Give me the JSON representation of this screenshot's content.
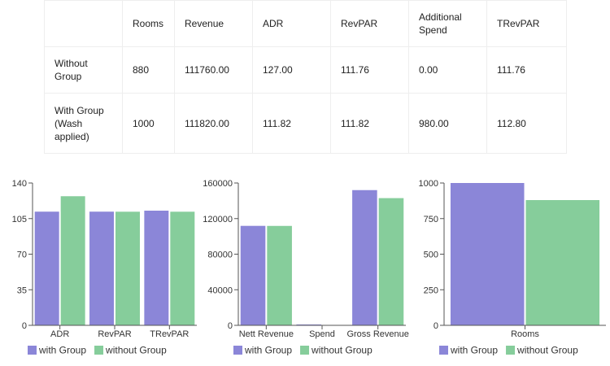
{
  "table": {
    "headers": [
      "",
      "Rooms",
      "Revenue",
      "ADR",
      "RevPAR",
      "Additional Spend",
      "TRevPAR"
    ],
    "rows": [
      [
        "Without Group",
        "880",
        "111760.00",
        "127.00",
        "111.76",
        "0.00",
        "111.76"
      ],
      [
        "With Group (Wash applied)",
        "1000",
        "111820.00",
        "111.82",
        "111.82",
        "980.00",
        "112.80"
      ]
    ]
  },
  "colors": {
    "with_group": "#8b86d8",
    "without_group": "#86cd9b",
    "axis": "#555555"
  },
  "chart_data": [
    {
      "type": "bar",
      "categories": [
        "ADR",
        "RevPAR",
        "TRevPAR"
      ],
      "series": [
        {
          "name": "with Group",
          "values": [
            111.82,
            111.82,
            112.8
          ]
        },
        {
          "name": "without Group",
          "values": [
            127,
            111.76,
            111.76
          ]
        }
      ],
      "yticks": [
        0,
        35,
        70,
        105,
        140
      ],
      "ylim": [
        0,
        140
      ],
      "legend": "bottom-left"
    },
    {
      "type": "bar",
      "categories": [
        "Nett Revenue",
        "Spend",
        "Gross Revenue"
      ],
      "series": [
        {
          "name": "with Group",
          "values": [
            111820,
            980,
            152000
          ]
        },
        {
          "name": "without Group",
          "values": [
            111760,
            0,
            143000
          ]
        }
      ],
      "yticks": [
        0,
        40000,
        80000,
        120000,
        160000
      ],
      "ylim": [
        0,
        160000
      ],
      "legend": "bottom-left"
    },
    {
      "type": "bar",
      "categories": [
        "Rooms"
      ],
      "series": [
        {
          "name": "with Group",
          "values": [
            1000
          ]
        },
        {
          "name": "without Group",
          "values": [
            880
          ]
        }
      ],
      "yticks": [
        0,
        250,
        500,
        750,
        1000
      ],
      "ylim": [
        0,
        1000
      ],
      "legend": "bottom-left"
    }
  ]
}
